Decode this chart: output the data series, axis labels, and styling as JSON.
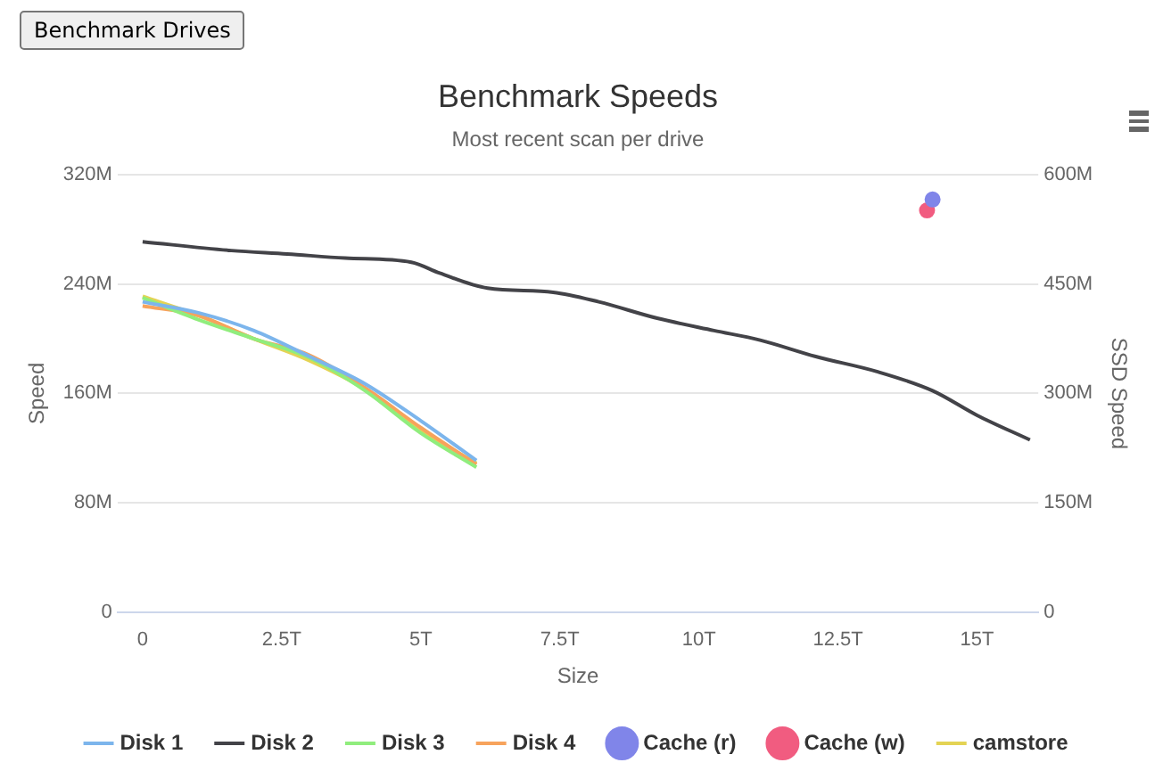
{
  "chart_data": {
    "type": "line",
    "title": "Benchmark Speeds",
    "subtitle": "Most recent scan per drive",
    "xlabel": "Size",
    "ylabel": "Speed",
    "y2label": "SSD Speed",
    "annotations": [
      "Benchmark Drives"
    ],
    "xlim": [
      -0.45,
      16.1
    ],
    "xticks": [
      0,
      {
        "value": 2.5,
        "label": "2.5T"
      },
      {
        "value": 5,
        "label": "5T"
      },
      {
        "value": 7.5,
        "label": "7.5T"
      },
      {
        "value": 10,
        "label": "10T"
      },
      {
        "value": 12.5,
        "label": "12.5T"
      },
      {
        "value": 15,
        "label": "15T"
      }
    ],
    "ylim": [
      0,
      320
    ],
    "yticks": [
      0,
      {
        "value": 80,
        "label": "80M"
      },
      {
        "value": 160,
        "label": "160M"
      },
      {
        "value": 240,
        "label": "240M"
      },
      {
        "value": 320,
        "label": "320M"
      }
    ],
    "y2lim": [
      0,
      600
    ],
    "y2ticks": [
      0,
      {
        "value": 150,
        "label": "150M"
      },
      {
        "value": 300,
        "label": "300M"
      },
      {
        "value": 450,
        "label": "450M"
      },
      {
        "value": 600,
        "label": "600M"
      }
    ],
    "grid": "y",
    "legend": "bottom",
    "marker": "none",
    "series": [
      {
        "name": "Disk 1",
        "color": "#7cb5ec",
        "x": [
          0,
          1,
          2,
          3,
          4,
          5,
          6
        ],
        "values": [
          227,
          219,
          206,
          187,
          167,
          140,
          111
        ]
      },
      {
        "name": "Disk 2",
        "color": "#434348",
        "x": [
          0,
          1.6,
          2.6,
          3.64,
          4.83,
          5.34,
          6.2,
          7.38,
          8.2,
          9.25,
          10.27,
          11.1,
          12.1,
          13.2,
          14.2,
          15,
          15.95
        ],
        "values": [
          271,
          264.5,
          262,
          259,
          256,
          248,
          237,
          234,
          227,
          215,
          206,
          199,
          187,
          176,
          162,
          144,
          126
        ]
      },
      {
        "name": "Disk 3",
        "color": "#90ed7d",
        "x": [
          0,
          1,
          2,
          3,
          4,
          5,
          6
        ],
        "values": [
          230,
          214,
          200,
          186,
          162,
          131,
          106
        ]
      },
      {
        "name": "Disk 4",
        "color": "#f7a35c",
        "x": [
          0,
          1,
          2,
          3,
          4,
          5,
          6
        ],
        "values": [
          224,
          217,
          200,
          188,
          164,
          135,
          108
        ]
      },
      {
        "name": "Cache (r)",
        "type": "scatter",
        "marker": "circle",
        "axis": "y2",
        "color": "#8085e9",
        "x": [
          14.2
        ],
        "values": [
          566
        ]
      },
      {
        "name": "Cache (w)",
        "type": "scatter",
        "marker": "circle",
        "axis": "y2",
        "color": "#f15c80",
        "x": [
          14.1
        ],
        "values": [
          551
        ]
      },
      {
        "name": "camstore",
        "color": "#e4d354",
        "x": [
          0,
          1,
          2,
          3,
          4,
          5,
          6
        ],
        "values": [
          231,
          217,
          200,
          184,
          163,
          133,
          109
        ]
      }
    ]
  }
}
